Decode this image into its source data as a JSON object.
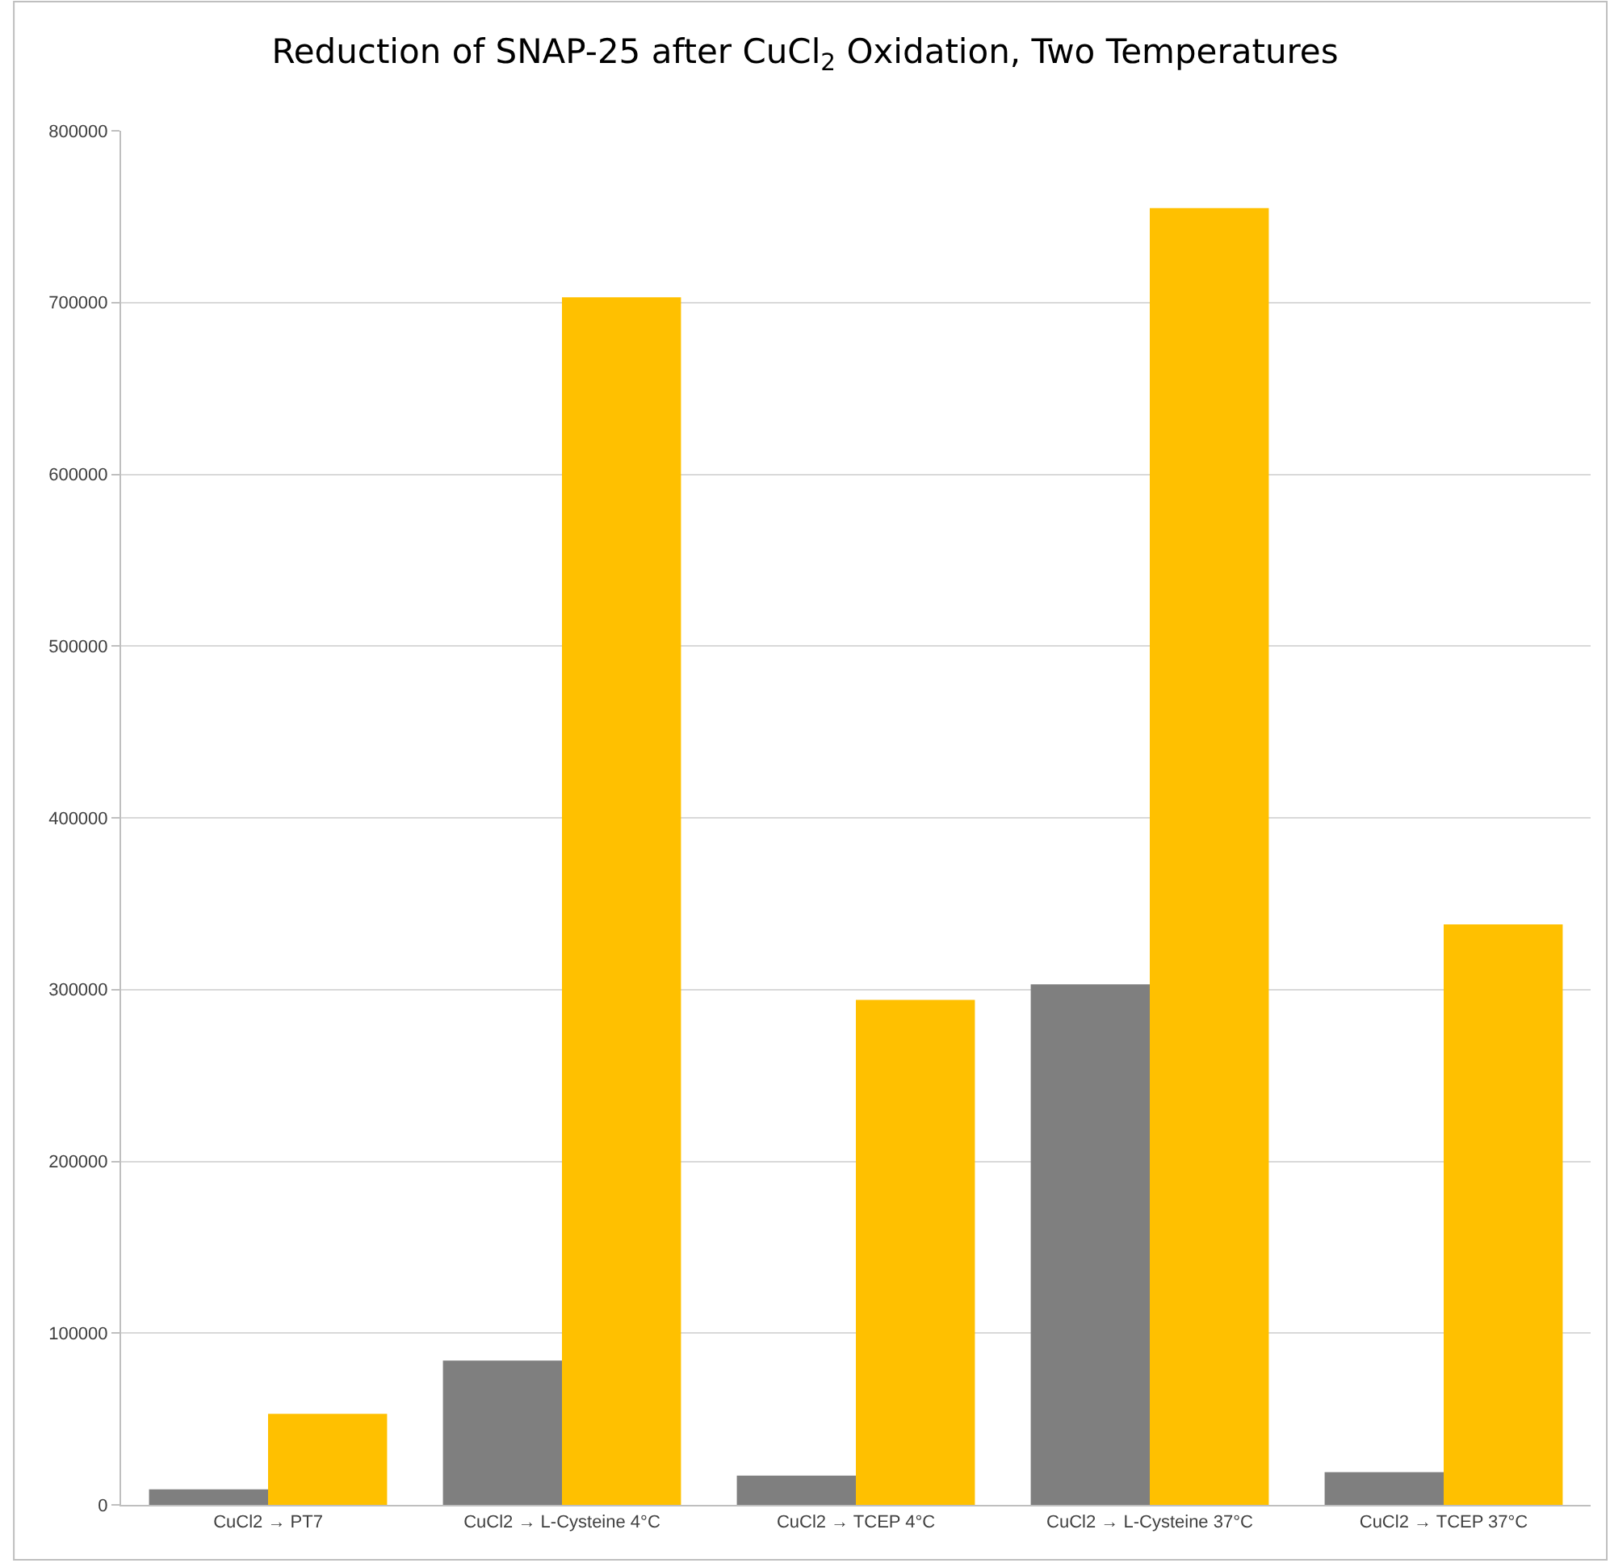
{
  "chart_data": {
    "type": "bar",
    "title": "Reduction of SNAP-25 after CuCl$_{2}$ Oxidation, Two Temperatures",
    "categories": [
      "CuCl2 → PT7",
      "CuCl2 → L-Cysteine 4°C",
      "CuCl2 → TCEP 4°C",
      "CuCl2 → L-Cysteine 37°C",
      "CuCl2 → TCEP 37°C"
    ],
    "series": [
      {
        "color": "#7f7f7f",
        "values": [
          9000,
          84000,
          17000,
          303000,
          19000
        ]
      },
      {
        "color": "#ffc000",
        "values": [
          53000,
          703000,
          294000,
          755000,
          338000
        ]
      }
    ],
    "ylim": [
      0,
      800000
    ],
    "yticks": [
      0,
      100000,
      200000,
      300000,
      400000,
      500000,
      600000,
      700000,
      800000
    ],
    "grid": "y"
  }
}
